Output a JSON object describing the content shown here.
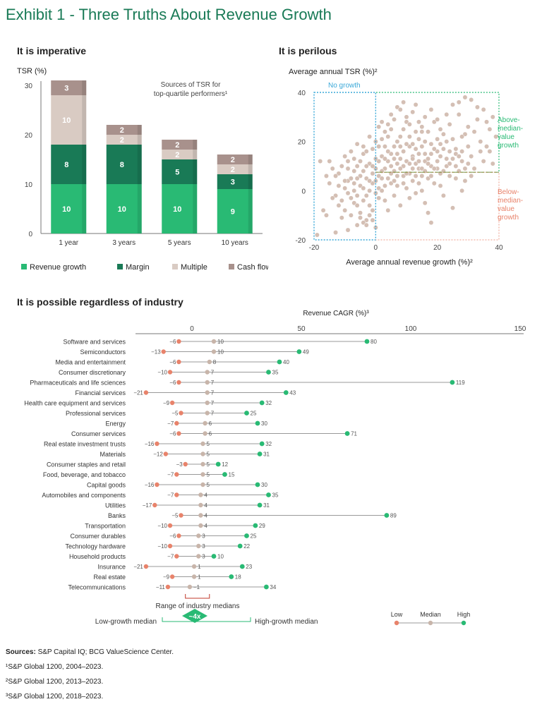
{
  "title": "Exhibit 1 - Three Truths About Revenue Growth",
  "colors": {
    "title": "#197a56",
    "revenue_growth": "#29ba74",
    "margin": "#197a56",
    "multiple": "#d9cbc3",
    "cash_flow": "#a8918c",
    "scatter_point": "#d4bfb4",
    "low": "#e8836b",
    "median": "#c8b5aa",
    "high": "#29ba74",
    "no_growth_box": "#3aa8d8",
    "above_median_box": "#29ba74",
    "below_median_box": "#e8836b",
    "median_line": "#6a9e3a"
  },
  "panel1": {
    "heading": "It is imperative",
    "y_axis_label": "TSR (%)",
    "note_line1": "Sources of TSR for",
    "note_line2": "top-quartile performers¹",
    "legend": [
      "Revenue growth",
      "Margin",
      "Multiple",
      "Cash flow"
    ]
  },
  "panel2": {
    "heading": "It is perilous",
    "y_axis_label": "Average annual TSR (%)²",
    "x_axis_label": "Average annual revenue growth (%)²",
    "no_growth_label": "No growth",
    "above_label": [
      "Above-",
      "median-",
      "value",
      "growth"
    ],
    "below_label": [
      "Below-",
      "median-",
      "value",
      "growth"
    ]
  },
  "panel3": {
    "heading": "It is possible regardless of industry",
    "axis_title": "Revenue CAGR (%)³",
    "range_label": "Range of industry medians",
    "multiplier": "~4x",
    "low_growth_median": "Low-growth median",
    "high_growth_median": "High-growth median",
    "key": [
      "Low",
      "Median",
      "High"
    ]
  },
  "footer": {
    "sources_label": "Sources:",
    "sources_text": "S&P Capital IQ; BCG ValueScience Center.",
    "notes": [
      "¹S&P Global 1200, 2004–2023.",
      "²S&P Global 1200, 2013–2023.",
      "³S&P Global 1200, 2018–2023."
    ]
  },
  "chart_data": [
    {
      "type": "bar",
      "stacked": true,
      "categories": [
        "1 year",
        "3 years",
        "5 years",
        "10 years"
      ],
      "series": [
        {
          "name": "Revenue growth",
          "values": [
            10,
            10,
            10,
            9
          ]
        },
        {
          "name": "Margin",
          "values": [
            8,
            8,
            5,
            3
          ]
        },
        {
          "name": "Multiple",
          "values": [
            10,
            2,
            2,
            2
          ]
        },
        {
          "name": "Cash flow",
          "values": [
            3,
            2,
            2,
            2
          ]
        }
      ],
      "ylim": [
        0,
        30
      ],
      "yticks": [
        0,
        10,
        20,
        30
      ],
      "ylabel": "TSR (%)",
      "legend_position": "bottom"
    },
    {
      "type": "scatter",
      "xlabel": "Average annual revenue growth (%)²",
      "ylabel": "Average annual TSR (%)²",
      "xlim": [
        -20,
        40
      ],
      "ylim": [
        -20,
        40
      ],
      "xticks": [
        -20,
        0,
        20,
        40
      ],
      "yticks": [
        -20,
        0,
        20,
        40
      ],
      "median_tsr": 7.5,
      "regions": [
        "No growth",
        "Above-median-value growth",
        "Below-median-value growth"
      ],
      "points": [
        [
          -18,
          12
        ],
        [
          -16,
          6
        ],
        [
          -11,
          10
        ],
        [
          -15,
          3
        ],
        [
          -12,
          7
        ],
        [
          -13,
          -2
        ],
        [
          -10,
          14
        ],
        [
          -9,
          4
        ],
        [
          -8,
          16
        ],
        [
          -14,
          9
        ],
        [
          -17,
          -8
        ],
        [
          -7,
          -5
        ],
        [
          -6,
          19
        ],
        [
          -5,
          -9
        ],
        [
          -4,
          8
        ],
        [
          -3,
          -12
        ],
        [
          -2,
          22
        ],
        [
          -1,
          3
        ],
        [
          0,
          -15
        ],
        [
          1,
          12
        ],
        [
          -19,
          -18
        ],
        [
          -13,
          -17
        ],
        [
          -9,
          -16
        ],
        [
          -6,
          -14
        ],
        [
          -4,
          -13
        ],
        [
          -2,
          -6
        ],
        [
          -8,
          -10
        ],
        [
          -11,
          -4
        ],
        [
          -7,
          0
        ],
        [
          -5,
          2
        ],
        [
          -3,
          5
        ],
        [
          -1,
          7
        ],
        [
          0,
          9
        ],
        [
          1,
          1
        ],
        [
          1,
          -3
        ],
        [
          -2,
          11
        ],
        [
          -6,
          10
        ],
        [
          -9,
          -1
        ],
        [
          -12,
          2
        ],
        [
          -15,
          12
        ],
        [
          -10,
          -8
        ],
        [
          -7,
          13
        ],
        [
          -4,
          15
        ],
        [
          -3,
          -2
        ],
        [
          -5,
          6
        ],
        [
          -1,
          -8
        ],
        [
          0,
          4
        ],
        [
          -6,
          -6
        ],
        [
          -8,
          5
        ],
        [
          -2,
          0
        ],
        [
          -4,
          -4
        ],
        [
          -1,
          17
        ],
        [
          -3,
          10
        ],
        [
          1,
          6
        ],
        [
          -5,
          -11
        ],
        [
          -9,
          9
        ],
        [
          -7,
          3
        ],
        [
          -10,
          1
        ],
        [
          -11,
          -11
        ],
        [
          -13,
          6
        ],
        [
          2,
          5
        ],
        [
          3,
          9
        ],
        [
          4,
          12
        ],
        [
          5,
          15
        ],
        [
          6,
          18
        ],
        [
          7,
          20
        ],
        [
          8,
          22
        ],
        [
          9,
          25
        ],
        [
          10,
          28
        ],
        [
          11,
          18
        ],
        [
          12,
          14
        ],
        [
          13,
          11
        ],
        [
          14,
          9
        ],
        [
          15,
          6
        ],
        [
          16,
          20
        ],
        [
          17,
          24
        ],
        [
          18,
          10
        ],
        [
          19,
          3
        ],
        [
          20,
          16
        ],
        [
          21,
          19
        ],
        [
          22,
          8
        ],
        [
          23,
          13
        ],
        [
          24,
          27
        ],
        [
          25,
          21
        ],
        [
          26,
          17
        ],
        [
          27,
          31
        ],
        [
          28,
          12
        ],
        [
          29,
          23
        ],
        [
          30,
          26
        ],
        [
          31,
          14
        ],
        [
          32,
          9
        ],
        [
          33,
          29
        ],
        [
          34,
          20
        ],
        [
          35,
          33
        ],
        [
          36,
          18
        ],
        [
          37,
          25
        ],
        [
          38,
          11
        ],
        [
          39,
          22
        ],
        [
          2,
          14
        ],
        [
          3,
          18
        ],
        [
          4,
          22
        ],
        [
          5,
          25
        ],
        [
          6,
          8
        ],
        [
          7,
          11
        ],
        [
          8,
          13
        ],
        [
          9,
          16
        ],
        [
          10,
          19
        ],
        [
          11,
          7
        ],
        [
          12,
          4
        ],
        [
          13,
          17
        ],
        [
          14,
          21
        ],
        [
          15,
          24
        ],
        [
          16,
          12
        ],
        [
          17,
          5
        ],
        [
          18,
          15
        ],
        [
          19,
          28
        ],
        [
          20,
          9
        ],
        [
          21,
          2
        ],
        [
          22,
          17
        ],
        [
          23,
          20
        ],
        [
          24,
          6
        ],
        [
          25,
          13
        ],
        [
          26,
          10
        ],
        [
          27,
          8
        ],
        [
          28,
          16
        ],
        [
          29,
          4
        ],
        [
          30,
          11
        ],
        [
          2,
          0
        ],
        [
          3,
          -4
        ],
        [
          4,
          -8
        ],
        [
          5,
          3
        ],
        [
          6,
          -2
        ],
        [
          7,
          2
        ],
        [
          8,
          -6
        ],
        [
          9,
          6
        ],
        [
          10,
          1
        ],
        [
          11,
          -3
        ],
        [
          12,
          9
        ],
        [
          13,
          -1
        ],
        [
          14,
          3
        ],
        [
          15,
          0
        ],
        [
          16,
          -5
        ],
        [
          17,
          -9
        ],
        [
          18,
          -13
        ],
        [
          22,
          -2
        ],
        [
          25,
          -7
        ],
        [
          28,
          0
        ],
        [
          3,
          24
        ],
        [
          4,
          27
        ],
        [
          5,
          31
        ],
        [
          6,
          29
        ],
        [
          7,
          34
        ],
        [
          8,
          33
        ],
        [
          9,
          36
        ],
        [
          10,
          30
        ],
        [
          11,
          27
        ],
        [
          12,
          32
        ],
        [
          13,
          35
        ],
        [
          14,
          28
        ],
        [
          15,
          26
        ],
        [
          16,
          30
        ],
        [
          18,
          33
        ],
        [
          20,
          29
        ],
        [
          21,
          25
        ],
        [
          23,
          31
        ],
        [
          25,
          35
        ],
        [
          27,
          36
        ],
        [
          29,
          38
        ],
        [
          31,
          37
        ],
        [
          33,
          34
        ],
        [
          36,
          28
        ],
        [
          38,
          30
        ],
        [
          1,
          26
        ],
        [
          2,
          28
        ],
        [
          0,
          20
        ],
        [
          1,
          18
        ],
        [
          2,
          21
        ],
        [
          3,
          13
        ],
        [
          4,
          16
        ],
        [
          5,
          10
        ],
        [
          6,
          13
        ],
        [
          7,
          15
        ],
        [
          8,
          18
        ],
        [
          9,
          10
        ],
        [
          10,
          12
        ],
        [
          11,
          22
        ],
        [
          12,
          19
        ],
        [
          13,
          24
        ],
        [
          14,
          15
        ],
        [
          15,
          18
        ],
        [
          16,
          15
        ],
        [
          17,
          13
        ],
        [
          18,
          19
        ],
        [
          19,
          17
        ],
        [
          20,
          21
        ],
        [
          21,
          14
        ],
        [
          22,
          23
        ],
        [
          23,
          10
        ],
        [
          24,
          16
        ],
        [
          26,
          15
        ],
        [
          28,
          22
        ],
        [
          30,
          18
        ],
        [
          32,
          24
        ],
        [
          34,
          16
        ],
        [
          2,
          8
        ],
        [
          3,
          2
        ],
        [
          4,
          5
        ],
        [
          5,
          7
        ],
        [
          6,
          4
        ],
        [
          7,
          6
        ],
        [
          8,
          9
        ],
        [
          9,
          3
        ],
        [
          10,
          7
        ],
        [
          11,
          11
        ],
        [
          12,
          13
        ],
        [
          13,
          6
        ],
        [
          14,
          12
        ],
        [
          15,
          9
        ],
        [
          16,
          8
        ],
        [
          17,
          11
        ],
        [
          18,
          6
        ],
        [
          19,
          9
        ],
        [
          20,
          12
        ],
        [
          21,
          7
        ],
        [
          24,
          11
        ],
        [
          26,
          5
        ],
        [
          27,
          14
        ],
        [
          29,
          9
        ],
        [
          31,
          6
        ],
        [
          35,
          12
        ],
        [
          37,
          16
        ],
        [
          -2,
          -10
        ],
        [
          -3,
          -14
        ],
        [
          -1,
          -12
        ],
        [
          0,
          -1
        ],
        [
          -4,
          1
        ],
        [
          -6,
          5
        ],
        [
          -8,
          -3
        ],
        [
          -10,
          4
        ],
        [
          -5,
          12
        ],
        [
          -3,
          16
        ],
        [
          -7,
          8
        ],
        [
          -2,
          4
        ],
        [
          -1,
          10
        ],
        [
          0,
          13
        ],
        [
          -4,
          18
        ],
        [
          -6,
          -2
        ],
        [
          -9,
          12
        ],
        [
          -12,
          -6
        ],
        [
          -14,
          -3
        ],
        [
          -16,
          -10
        ]
      ]
    },
    {
      "type": "dot_range",
      "xlabel": "Revenue CAGR (%)³",
      "xlim": [
        -25,
        150
      ],
      "xticks": [
        0,
        50,
        100,
        150
      ],
      "series_names": [
        "Low",
        "Median",
        "High"
      ],
      "rows": [
        {
          "industry": "Software and services",
          "low": -6,
          "median": 10,
          "high": 80
        },
        {
          "industry": "Semiconductors",
          "low": -13,
          "median": 10,
          "high": 49
        },
        {
          "industry": "Media and entertainment",
          "low": -6,
          "median": 8,
          "high": 40
        },
        {
          "industry": "Consumer discretionary",
          "low": -10,
          "median": 7,
          "high": 35
        },
        {
          "industry": "Pharmaceuticals and life sciences",
          "low": -6,
          "median": 7,
          "high": 119
        },
        {
          "industry": "Financial services",
          "low": -21,
          "median": 7,
          "high": 43
        },
        {
          "industry": "Health care equipment and services",
          "low": -9,
          "median": 7,
          "high": 32
        },
        {
          "industry": "Professional services",
          "low": -5,
          "median": 7,
          "high": 25
        },
        {
          "industry": "Energy",
          "low": -7,
          "median": 6,
          "high": 30
        },
        {
          "industry": "Consumer services",
          "low": -6,
          "median": 6,
          "high": 71
        },
        {
          "industry": "Real estate investment trusts",
          "low": -16,
          "median": 5,
          "high": 32
        },
        {
          "industry": "Materials",
          "low": -12,
          "median": 5,
          "high": 31
        },
        {
          "industry": "Consumer staples and retail",
          "low": -3,
          "median": 5,
          "high": 12
        },
        {
          "industry": "Food, beverage, and tobacco",
          "low": -7,
          "median": 5,
          "high": 15
        },
        {
          "industry": "Capital goods",
          "low": -16,
          "median": 5,
          "high": 30
        },
        {
          "industry": "Automobiles and components",
          "low": -7,
          "median": 4,
          "high": 35
        },
        {
          "industry": "Utilities",
          "low": -17,
          "median": 4,
          "high": 31
        },
        {
          "industry": "Banks",
          "low": -5,
          "median": 4,
          "high": 89
        },
        {
          "industry": "Transportation",
          "low": -10,
          "median": 4,
          "high": 29
        },
        {
          "industry": "Consumer durables",
          "low": -6,
          "median": 3,
          "high": 25
        },
        {
          "industry": "Technology hardware",
          "low": -10,
          "median": 3,
          "high": 22
        },
        {
          "industry": "Household products",
          "low": -7,
          "median": 3,
          "high": 10
        },
        {
          "industry": "Insurance",
          "low": -21,
          "median": 1,
          "high": 23
        },
        {
          "industry": "Real estate",
          "low": -9,
          "median": 1,
          "high": 18
        },
        {
          "industry": "Telecommunications",
          "low": -11,
          "median": -1,
          "high": 34
        }
      ]
    }
  ]
}
